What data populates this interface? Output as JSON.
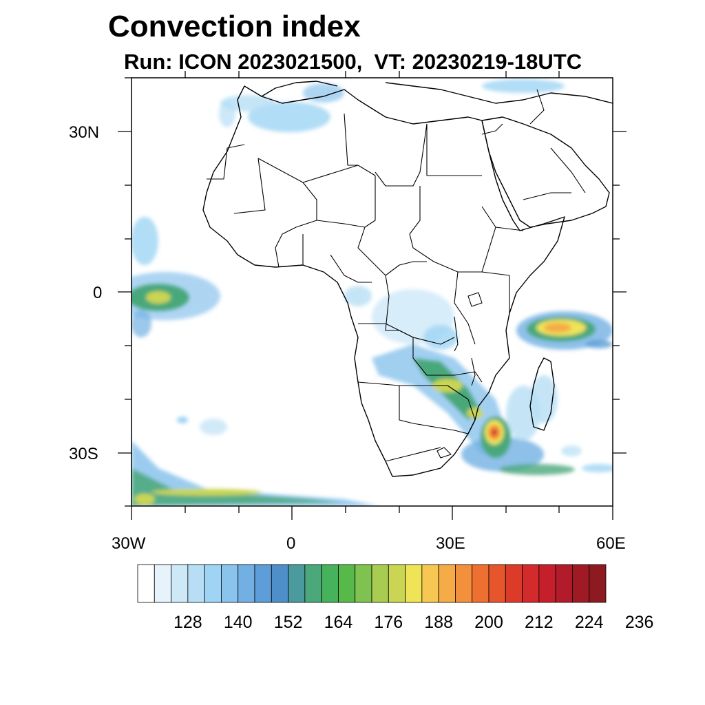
{
  "title": "Convection index",
  "subtitle": "Run: ICON 2023021500,  VT: 20230219-18UTC",
  "axes": {
    "lat_labels": [
      "30N",
      "0",
      "30S"
    ],
    "lon_labels": [
      "30W",
      "0",
      "30E",
      "60E"
    ]
  },
  "colorbar": {
    "colors": [
      "#ffffff",
      "#e6f3fb",
      "#cde8f7",
      "#b7def5",
      "#9fd4f4",
      "#8ac3ec",
      "#72b0e3",
      "#5d9dd8",
      "#4f8fc9",
      "#4a9a9e",
      "#4aa87a",
      "#47b25c",
      "#58b94b",
      "#7fc24f",
      "#a8cc52",
      "#c9d553",
      "#efe458",
      "#f6c853",
      "#f5ac46",
      "#f3903b",
      "#ee7031",
      "#e6552b",
      "#dc3b2a",
      "#d32a2b",
      "#c41f2b",
      "#b21b29",
      "#a01a25",
      "#8c1a20"
    ],
    "tick_labels": [
      "128",
      "140",
      "152",
      "164",
      "176",
      "188",
      "200",
      "212",
      "224",
      "236"
    ]
  }
}
